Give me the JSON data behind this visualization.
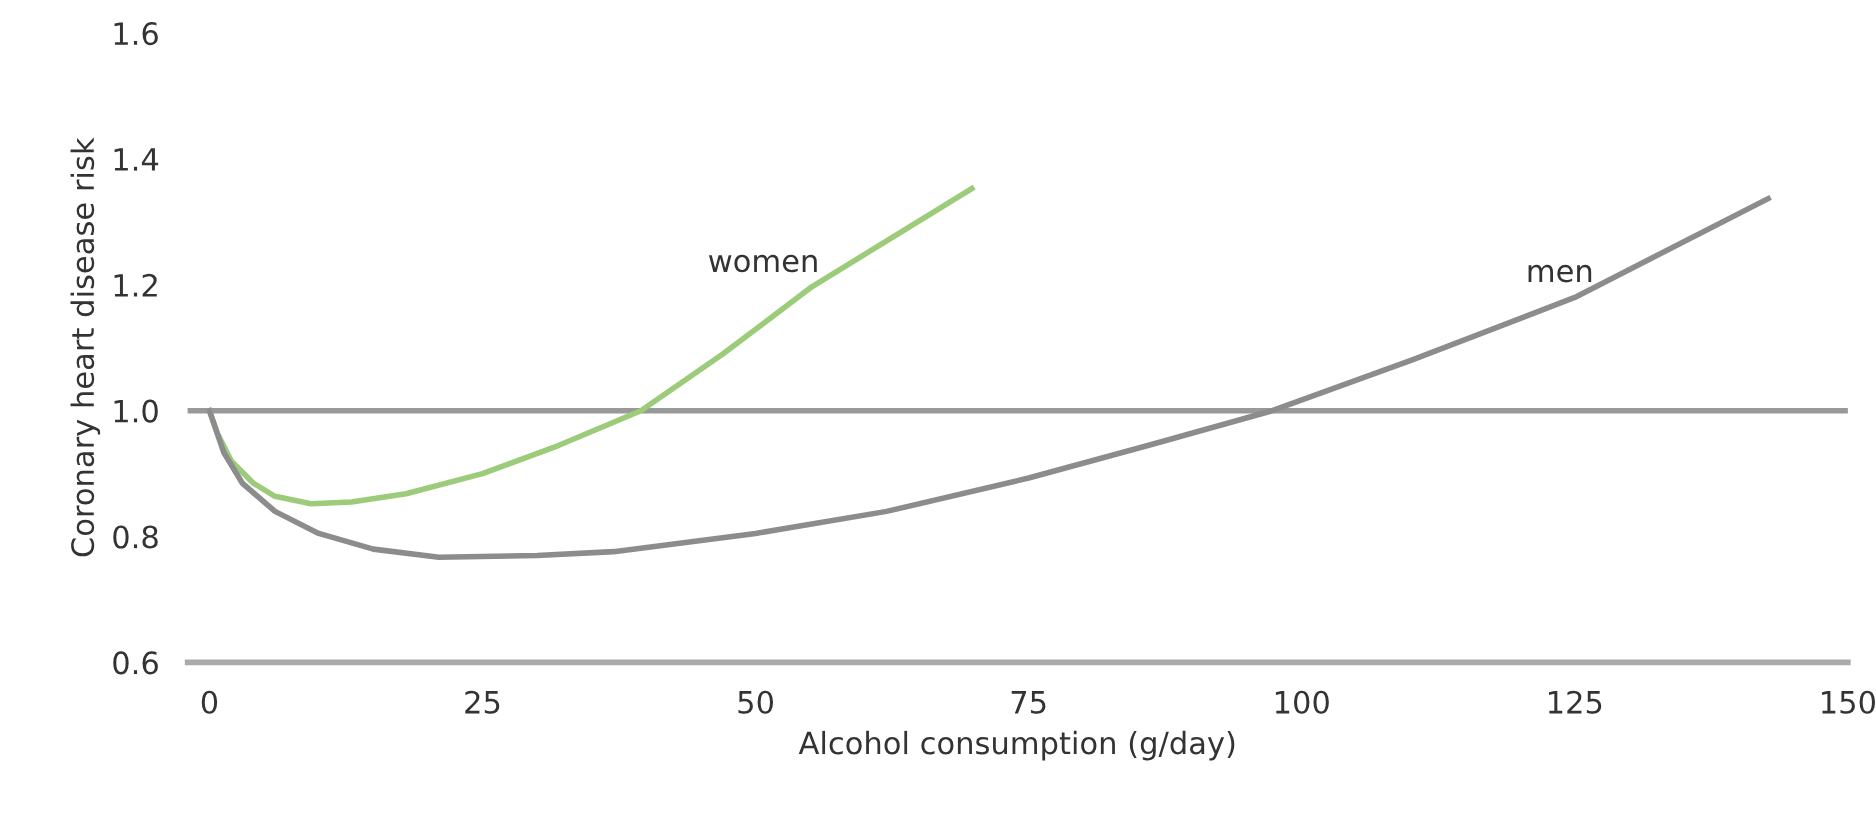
{
  "chart_data": {
    "type": "line",
    "xlabel": "Alcohol consumption (g/day)",
    "ylabel": "Coronary heart disease risk",
    "xlim": [
      -2,
      150
    ],
    "ylim": [
      0.6,
      1.6
    ],
    "xticks": [
      0,
      25,
      50,
      75,
      100,
      125,
      150
    ],
    "yticks": [
      {
        "value": 0.6,
        "label": "0.6"
      },
      {
        "value": 0.8,
        "label": "0.8"
      },
      {
        "value": 1.0,
        "label": "1.0"
      },
      {
        "value": 1.2,
        "label": "1.2"
      },
      {
        "value": 1.4,
        "label": "1.4"
      },
      {
        "value": 1.6,
        "label": "1.6"
      }
    ],
    "grid": false,
    "legend": false,
    "marker": "none",
    "line_style": "solid",
    "ref_lines": [
      {
        "axis": "y",
        "value": 1.0,
        "label": null,
        "color": "#999999"
      }
    ],
    "series": [
      {
        "name": "women",
        "color": "#9ccc7a",
        "x": [
          0,
          0.7,
          2,
          4,
          6,
          9.3,
          13,
          18,
          25,
          32,
          39.5,
          47,
          55,
          62,
          69.8
        ],
        "values": [
          1.0,
          0.965,
          0.92,
          0.885,
          0.864,
          0.852,
          0.855,
          0.868,
          0.9,
          0.945,
          1.0,
          1.09,
          1.195,
          1.27,
          1.353
        ]
      },
      {
        "name": "men",
        "color": "#8c8c8c",
        "x": [
          0,
          1.3,
          3,
          6,
          10,
          15,
          21,
          30,
          37,
          50,
          62,
          75,
          86,
          97.3,
          110,
          125,
          142.7
        ],
        "values": [
          1.0,
          0.934,
          0.885,
          0.84,
          0.805,
          0.78,
          0.767,
          0.77,
          0.776,
          0.805,
          0.84,
          0.893,
          0.945,
          1.0,
          1.08,
          1.18,
          1.337
        ]
      }
    ]
  }
}
